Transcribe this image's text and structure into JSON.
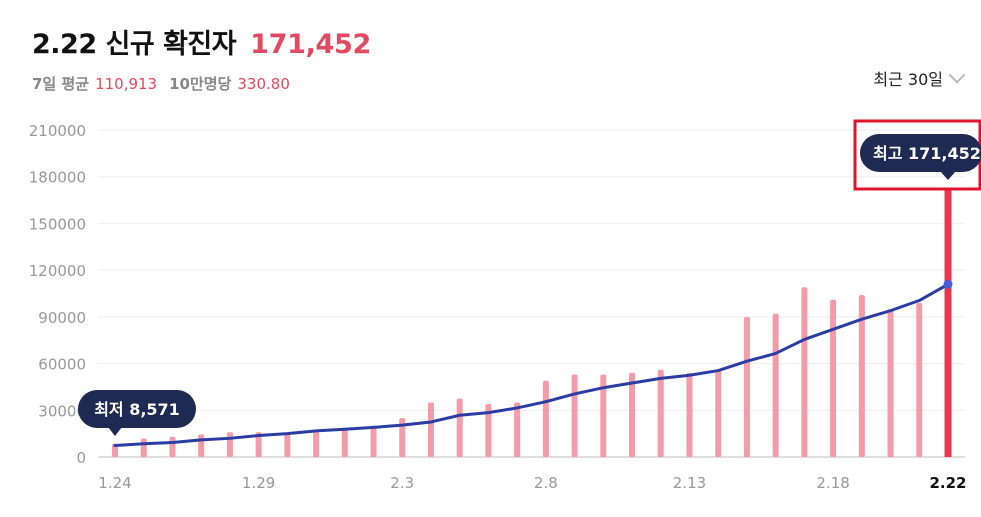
{
  "header": {
    "title": "2.22 신규 확진자",
    "value": "171,452",
    "avg_label": "7일 평균",
    "avg_value": "110,913",
    "per100k_label": "10만명당",
    "per100k_value": "330.80"
  },
  "period": {
    "label": "최근 30일"
  },
  "colors": {
    "bar": "#f49ba9",
    "bar_highlight": "#e8364f",
    "line": "#2b3da3",
    "badge": "#1e2a52",
    "accent": "#e24a63"
  },
  "chart_data": {
    "type": "bar",
    "categories": [
      "1.24",
      "1.25",
      "1.26",
      "1.27",
      "1.28",
      "1.29",
      "1.30",
      "1.31",
      "2.1",
      "2.2",
      "2.3",
      "2.4",
      "2.5",
      "2.6",
      "2.7",
      "2.8",
      "2.9",
      "2.10",
      "2.11",
      "2.12",
      "2.13",
      "2.14",
      "2.15",
      "2.16",
      "2.17",
      "2.18",
      "2.19",
      "2.20",
      "2.21",
      "2.22"
    ],
    "x_tick_labels": [
      "1.24",
      "1.29",
      "2.3",
      "2.8",
      "2.13",
      "2.18",
      "2.22"
    ],
    "y_ticks": [
      "0",
      "30000",
      "60000",
      "90000",
      "120000",
      "150000",
      "180000",
      "210000"
    ],
    "ylim": [
      0,
      210000
    ],
    "grid": true,
    "series": [
      {
        "type": "bar",
        "values": [
          8571,
          11900,
          13000,
          14500,
          16000,
          16000,
          14500,
          17500,
          18000,
          20000,
          25000,
          35000,
          37500,
          34000,
          35000,
          49000,
          53000,
          53000,
          54000,
          56000,
          54000,
          56000,
          90000,
          92000,
          109000,
          101000,
          104000,
          95000,
          99000,
          171452
        ]
      },
      {
        "type": "line",
        "values": [
          7400,
          8500,
          9300,
          11000,
          12000,
          13800,
          15000,
          16800,
          17800,
          19000,
          20500,
          22500,
          26800,
          28500,
          31500,
          35500,
          40500,
          44500,
          47500,
          50500,
          52500,
          55500,
          61500,
          66500,
          75500,
          82000,
          88500,
          94000,
          100500,
          110913
        ]
      }
    ],
    "annotations": {
      "min_label": "최저",
      "min_value": "8,571",
      "max_label": "최고",
      "max_value": "171,452"
    }
  }
}
